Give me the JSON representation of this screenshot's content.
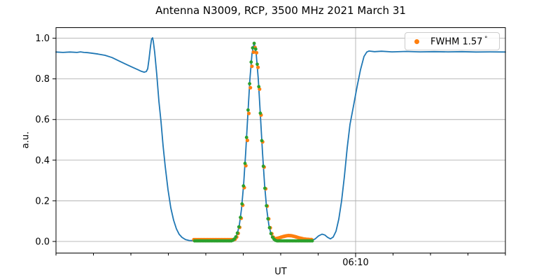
{
  "chart_data": {
    "type": "line+scatter",
    "title": "Antenna N3009, RCP, 3500 MHz 2021 March 31",
    "xlabel": "UT",
    "ylabel": "a.u.",
    "ylim": [
      -0.057,
      1.052
    ],
    "grid": true,
    "colors": {
      "line": "#1f77b4",
      "data_points": "#ff7f0e",
      "fit_points": "#2ca02c",
      "grid": "#b0b0b0",
      "spine": "#000000",
      "text": "#000000"
    },
    "y_axis": {
      "ticks": [
        0.0,
        0.2,
        0.4,
        0.6,
        0.8,
        1.0
      ],
      "tick_labels": [
        "0.0",
        "0.2",
        "0.4",
        "0.6",
        "0.8",
        "1.0"
      ]
    },
    "x_axis": {
      "minor_divisions": 12,
      "major_tick_frac": 0.6667,
      "major_tick_label": "06:10"
    },
    "legend": {
      "label": "FWHM 1.57",
      "degree_symbol": "°",
      "marker_color_key": "data_points"
    },
    "series": [
      {
        "name": "drift-scan-line",
        "type": "line",
        "color_key": "line",
        "points_frac_value": [
          [
            0,
            0.932
          ],
          [
            0.0156,
            0.93
          ],
          [
            0.0312,
            0.932
          ],
          [
            0.0467,
            0.93
          ],
          [
            0.0545,
            0.933
          ],
          [
            0.0623,
            0.93
          ],
          [
            0.0701,
            0.929
          ],
          [
            0.0779,
            0.927
          ],
          [
            0.0935,
            0.922
          ],
          [
            0.109,
            0.916
          ],
          [
            0.1246,
            0.905
          ],
          [
            0.1402,
            0.888
          ],
          [
            0.1558,
            0.872
          ],
          [
            0.1713,
            0.856
          ],
          [
            0.1822,
            0.845
          ],
          [
            0.19,
            0.837
          ],
          [
            0.1963,
            0.833
          ],
          [
            0.2009,
            0.836
          ],
          [
            0.204,
            0.85
          ],
          [
            0.2072,
            0.9
          ],
          [
            0.2103,
            0.96
          ],
          [
            0.2126,
            0.995
          ],
          [
            0.2149,
            1.002
          ],
          [
            0.2165,
            0.985
          ],
          [
            0.2196,
            0.93
          ],
          [
            0.2243,
            0.82
          ],
          [
            0.229,
            0.69
          ],
          [
            0.2336,
            0.59
          ],
          [
            0.2383,
            0.47
          ],
          [
            0.243,
            0.37
          ],
          [
            0.2492,
            0.255
          ],
          [
            0.2555,
            0.165
          ],
          [
            0.2617,
            0.105
          ],
          [
            0.2679,
            0.062
          ],
          [
            0.2741,
            0.035
          ],
          [
            0.2804,
            0.02
          ],
          [
            0.2882,
            0.009
          ],
          [
            0.296,
            0.005
          ],
          [
            0.3115,
            0.004
          ],
          [
            0.3427,
            0.004
          ],
          [
            0.3738,
            0.004
          ],
          [
            0.3941,
            0.006
          ],
          [
            0.3988,
            0.015
          ],
          [
            0.4034,
            0.038
          ],
          [
            0.4081,
            0.083
          ],
          [
            0.4128,
            0.16
          ],
          [
            0.4174,
            0.278
          ],
          [
            0.4221,
            0.438
          ],
          [
            0.4268,
            0.62
          ],
          [
            0.4315,
            0.798
          ],
          [
            0.4361,
            0.924
          ],
          [
            0.4408,
            0.975
          ],
          [
            0.4455,
            0.924
          ],
          [
            0.4502,
            0.798
          ],
          [
            0.4548,
            0.62
          ],
          [
            0.4595,
            0.438
          ],
          [
            0.4642,
            0.278
          ],
          [
            0.4688,
            0.16
          ],
          [
            0.4735,
            0.083
          ],
          [
            0.4782,
            0.038
          ],
          [
            0.4829,
            0.015
          ],
          [
            0.4875,
            0.007
          ],
          [
            0.4922,
            0.005
          ],
          [
            0.514,
            0.004
          ],
          [
            0.5452,
            0.004
          ],
          [
            0.5685,
            0.006
          ],
          [
            0.5763,
            0.012
          ],
          [
            0.5841,
            0.027
          ],
          [
            0.5919,
            0.036
          ],
          [
            0.5981,
            0.032
          ],
          [
            0.6044,
            0.02
          ],
          [
            0.6106,
            0.013
          ],
          [
            0.6168,
            0.022
          ],
          [
            0.6231,
            0.05
          ],
          [
            0.6293,
            0.11
          ],
          [
            0.6355,
            0.2
          ],
          [
            0.6417,
            0.32
          ],
          [
            0.648,
            0.46
          ],
          [
            0.6542,
            0.576
          ],
          [
            0.662,
            0.667
          ],
          [
            0.6698,
            0.76
          ],
          [
            0.6776,
            0.845
          ],
          [
            0.6854,
            0.91
          ],
          [
            0.6916,
            0.932
          ],
          [
            0.6963,
            0.937
          ],
          [
            0.7087,
            0.934
          ],
          [
            0.7243,
            0.936
          ],
          [
            0.7477,
            0.933
          ],
          [
            0.7788,
            0.935
          ],
          [
            0.81,
            0.933
          ],
          [
            0.8411,
            0.934
          ],
          [
            0.8723,
            0.933
          ],
          [
            0.9034,
            0.934
          ],
          [
            0.9346,
            0.932
          ],
          [
            0.9657,
            0.933
          ],
          [
            1,
            0.932
          ]
        ]
      },
      {
        "name": "scan-data-points",
        "type": "scatter",
        "color_key": "data_points",
        "radius": 2.6,
        "model": {
          "x_range_frac": [
            0.3068,
            0.5717
          ],
          "spacing_frac": 0.0034,
          "gaussian": {
            "center_frac": 0.4427,
            "sigma_frac": 0.0148,
            "amplitude": 0.955
          },
          "floor": 0.009,
          "bump": {
            "center_frac": 0.5187,
            "sigma_frac": 0.0249,
            "height": 0.02
          }
        }
      },
      {
        "name": "gaussian-fit-points",
        "type": "scatter",
        "color_key": "fit_points",
        "radius": 2.4,
        "model": {
          "x_range_frac": [
            0.3084,
            0.5717
          ],
          "spacing_frac": 0.0034,
          "gaussian": {
            "center_frac": 0.4408,
            "sigma_frac": 0.0148,
            "amplitude": 0.975
          },
          "floor": 0.003,
          "bump": null
        }
      }
    ]
  }
}
